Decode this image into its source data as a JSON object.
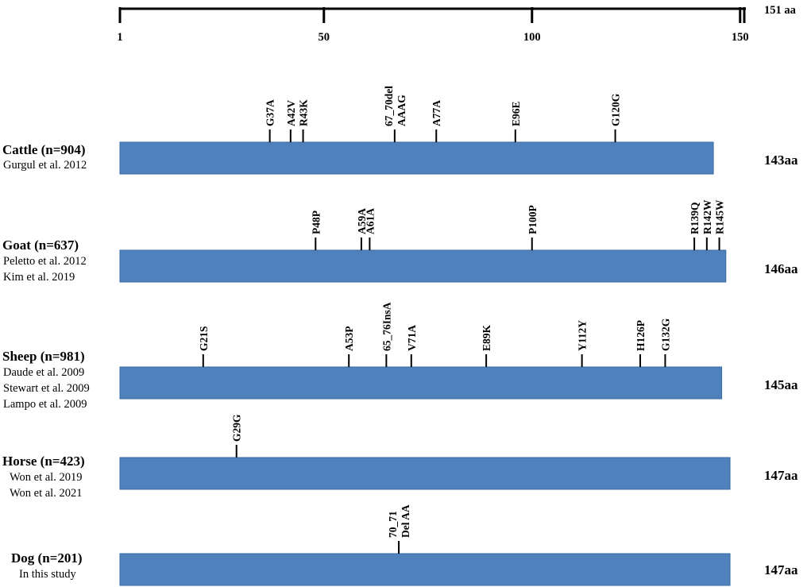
{
  "scale": {
    "end_label": "151 aa",
    "ticks": [
      {
        "value": 1,
        "label": "1"
      },
      {
        "value": 50,
        "label": "50"
      },
      {
        "value": 100,
        "label": "100"
      },
      {
        "value": 150,
        "label": "150"
      },
      {
        "value": 151,
        "label": ""
      }
    ]
  },
  "bar_color": "#4f81bd",
  "species": [
    {
      "name": "Cattle (n=904)",
      "citations": [
        "Gurgul et al. 2012"
      ],
      "length_label": "143aa",
      "length": 143,
      "mutations": [
        {
          "position": 37,
          "lines": [
            "G37A"
          ]
        },
        {
          "position": 42,
          "lines": [
            "A42V"
          ]
        },
        {
          "position": 45,
          "lines": [
            "R43K"
          ]
        },
        {
          "position": 67,
          "lines": [
            "67_70del",
            "AAAG"
          ]
        },
        {
          "position": 77,
          "lines": [
            "A77A"
          ]
        },
        {
          "position": 96,
          "lines": [
            "E96E"
          ]
        },
        {
          "position": 120,
          "lines": [
            "G120G"
          ]
        }
      ]
    },
    {
      "name": "Goat (n=637)",
      "citations": [
        "Peletto et al. 2012",
        "Kim et al. 2019"
      ],
      "length_label": "146aa",
      "length": 146,
      "mutations": [
        {
          "position": 48,
          "lines": [
            "P48P"
          ]
        },
        {
          "position": 59,
          "lines": [
            "A59A"
          ]
        },
        {
          "position": 61,
          "lines": [
            "A61A"
          ]
        },
        {
          "position": 100,
          "lines": [
            "P100P"
          ]
        },
        {
          "position": 139,
          "lines": [
            "R139Q"
          ]
        },
        {
          "position": 142,
          "lines": [
            "R142W"
          ]
        },
        {
          "position": 145,
          "lines": [
            "R145W"
          ]
        }
      ]
    },
    {
      "name": "Sheep (n=981)",
      "citations": [
        "Daude et al. 2009",
        "Stewart et al. 2009",
        "Lampo et al. 2009"
      ],
      "length_label": "145aa",
      "length": 145,
      "mutations": [
        {
          "position": 21,
          "lines": [
            "G21S"
          ]
        },
        {
          "position": 56,
          "lines": [
            "A53P"
          ]
        },
        {
          "position": 65,
          "lines": [
            "65_76InsA"
          ]
        },
        {
          "position": 71,
          "lines": [
            "V71A"
          ]
        },
        {
          "position": 89,
          "lines": [
            "E89K"
          ]
        },
        {
          "position": 112,
          "lines": [
            "Y112Y"
          ]
        },
        {
          "position": 126,
          "lines": [
            "H126P"
          ]
        },
        {
          "position": 132,
          "lines": [
            "G132G"
          ]
        }
      ]
    },
    {
      "name": "Horse (n=423)",
      "citations": [
        "Won et al. 2019",
        "Won et al. 2021"
      ],
      "length_label": "147aa",
      "length": 147,
      "mutations": [
        {
          "position": 29,
          "lines": [
            "G29G"
          ]
        }
      ]
    },
    {
      "name": "Dog (n=201)",
      "citations": [
        "In this study"
      ],
      "length_label": "147aa",
      "length": 147,
      "mutations": [
        {
          "position": 68,
          "lines": [
            "70_71",
            "Del  AA"
          ]
        }
      ]
    }
  ]
}
